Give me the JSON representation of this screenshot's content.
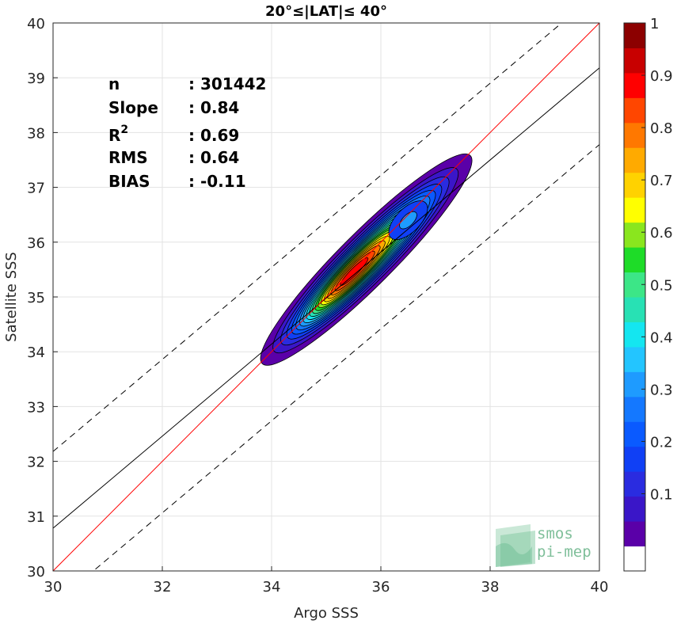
{
  "chart_data": {
    "type": "contour",
    "title": "20°≤|LAT|≤ 40°",
    "xlabel": "Argo SSS",
    "ylabel": "Satellite SSS",
    "xlim": [
      30,
      40
    ],
    "ylim": [
      30,
      40
    ],
    "xticks": [
      "30",
      "32",
      "34",
      "36",
      "38",
      "40"
    ],
    "yticks": [
      "30",
      "31",
      "32",
      "33",
      "34",
      "35",
      "36",
      "37",
      "38",
      "39",
      "40"
    ],
    "grid": true,
    "stats": [
      {
        "label": "n",
        "value": ": 301442"
      },
      {
        "label": "Slope",
        "value": ": 0.84"
      },
      {
        "label": "R",
        "sup": "2",
        "value": ": 0.69"
      },
      {
        "label": "RMS",
        "value": ": 0.64"
      },
      {
        "label": "BIAS",
        "value": ": -0.11"
      }
    ],
    "lines": {
      "identity": {
        "slope": 1,
        "intercept": 0,
        "color": "#ff0000"
      },
      "fit": {
        "slope": 0.84,
        "intercept": 5.58,
        "color": "#000000"
      },
      "upper_bound": {
        "slope": 0.84,
        "intercept": 6.98,
        "style": "dashed"
      },
      "lower_bound": {
        "slope": 0.84,
        "intercept": 4.18,
        "style": "dashed"
      }
    },
    "density_peak": {
      "x": 35.5,
      "y": 35.45
    },
    "density_axis": {
      "major_sigma": 1.1,
      "minor_sigma": 0.2
    },
    "secondary_peak": {
      "x": 36.5,
      "y": 36.4
    },
    "contour_levels": [
      0.05,
      0.1,
      0.15,
      0.2,
      0.25,
      0.3,
      0.35,
      0.4,
      0.45,
      0.5,
      0.55,
      0.6,
      0.65,
      0.7,
      0.75,
      0.8,
      0.85,
      0.9,
      0.95
    ],
    "colorbar": {
      "ticks": [
        "0.1",
        "0.2",
        "0.3",
        "0.4",
        "0.5",
        "0.6",
        "0.7",
        "0.8",
        "0.9",
        "1"
      ],
      "colors": [
        "#ffffff",
        "#5a00a8",
        "#3a16c8",
        "#2a2ce0",
        "#1040f5",
        "#0a5aff",
        "#1478ff",
        "#1e9bff",
        "#23c5ff",
        "#14e6f0",
        "#28e1b4",
        "#3ce687",
        "#1edc28",
        "#8ae61e",
        "#ffff00",
        "#ffd200",
        "#ffaa00",
        "#ff7800",
        "#ff4600",
        "#ff0000",
        "#c80000",
        "#8c0000"
      ]
    }
  },
  "logo": {
    "line1": "smos",
    "line2": "pi-mep"
  }
}
